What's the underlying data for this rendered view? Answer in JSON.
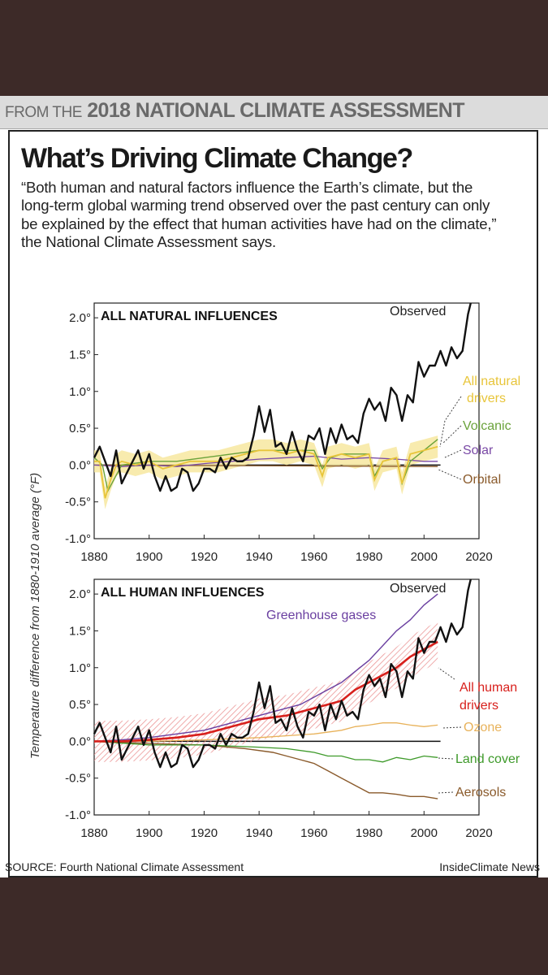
{
  "header": {
    "prefix": "FROM THE",
    "title": "2018 NATIONAL CLIMATE ASSESSMENT"
  },
  "title": "What’s Driving Climate Change?",
  "quote": "“Both human and natural factors influence the Earth’s climate, but the long-term global warming trend observed over the past century can only be explained by the effect that human activities have had on the climate,” the National Climate Assessment says.",
  "footer": {
    "source": "SOURCE: Fourth National Climate Assessment",
    "credit": "InsideClimate News"
  },
  "colors": {
    "observed": "#111111",
    "all_natural": "#e8c53a",
    "all_natural_band": "#f7e7a0",
    "volcanic": "#6aa23a",
    "solar": "#7a4aa6",
    "orbital": "#8a5a2b",
    "greenhouse": "#6a3fa0",
    "all_human": "#d8201c",
    "all_human_band": "#f2a3a3",
    "ozone": "#e8b25a",
    "land_cover": "#3e9a2a",
    "aerosols": "#8a5a2b"
  },
  "chart_data": [
    {
      "type": "line",
      "title": "ALL NATURAL INFLUENCES",
      "xlabel": "",
      "ylabel": "Temperature difference from 1880-1910 average (°F)",
      "xlim": [
        1880,
        2020
      ],
      "ylim": [
        -1.0,
        2.2
      ],
      "x_ticks": [
        "1880",
        "1900",
        "1920",
        "1940",
        "1960",
        "1980",
        "2000",
        "2020"
      ],
      "y_ticks": [
        "2.0°",
        "1.5°",
        "1.0°",
        "0.5°",
        "0.0°",
        "-0.5°",
        "-1.0°"
      ],
      "series": [
        {
          "name": "Observed",
          "color_key": "observed",
          "x": [
            1880,
            1882,
            1884,
            1886,
            1888,
            1890,
            1892,
            1894,
            1896,
            1898,
            1900,
            1902,
            1904,
            1906,
            1908,
            1910,
            1912,
            1914,
            1916,
            1918,
            1920,
            1922,
            1924,
            1926,
            1928,
            1930,
            1932,
            1934,
            1936,
            1938,
            1940,
            1942,
            1944,
            1946,
            1948,
            1950,
            1952,
            1954,
            1956,
            1958,
            1960,
            1962,
            1964,
            1966,
            1968,
            1970,
            1972,
            1974,
            1976,
            1978,
            1980,
            1982,
            1984,
            1986,
            1988,
            1990,
            1992,
            1994,
            1996,
            1998,
            2000,
            2002,
            2004,
            2006,
            2008,
            2010,
            2012,
            2014,
            2016,
            2017
          ],
          "y": [
            0.1,
            0.25,
            0.05,
            -0.15,
            0.2,
            -0.25,
            -0.1,
            0.05,
            0.2,
            -0.05,
            0.15,
            -0.15,
            -0.35,
            -0.15,
            -0.35,
            -0.3,
            -0.05,
            -0.1,
            -0.35,
            -0.25,
            -0.05,
            -0.05,
            -0.1,
            0.1,
            -0.05,
            0.1,
            0.05,
            0.05,
            0.1,
            0.4,
            0.8,
            0.45,
            0.75,
            0.25,
            0.3,
            0.15,
            0.45,
            0.2,
            0.05,
            0.4,
            0.35,
            0.5,
            0.15,
            0.5,
            0.3,
            0.55,
            0.35,
            0.4,
            0.3,
            0.7,
            0.9,
            0.75,
            0.85,
            0.6,
            1.05,
            0.95,
            0.6,
            0.95,
            0.85,
            1.4,
            1.2,
            1.35,
            1.35,
            1.55,
            1.35,
            1.6,
            1.45,
            1.55,
            2.05,
            2.2
          ]
        },
        {
          "name": "All natural drivers",
          "color_key": "all_natural",
          "x": [
            1880,
            1882,
            1884,
            1886,
            1888,
            1890,
            1895,
            1900,
            1905,
            1910,
            1915,
            1920,
            1925,
            1930,
            1935,
            1940,
            1945,
            1950,
            1955,
            1960,
            1963,
            1965,
            1970,
            1975,
            1980,
            1982,
            1985,
            1990,
            1992,
            1995,
            2000,
            2005
          ],
          "y": [
            0.05,
            0.05,
            -0.45,
            -0.2,
            0.0,
            0.05,
            0.0,
            0.05,
            -0.05,
            0.0,
            0.05,
            0.05,
            0.05,
            0.1,
            0.15,
            0.2,
            0.2,
            0.15,
            0.2,
            0.15,
            -0.15,
            0.1,
            0.15,
            0.1,
            0.15,
            -0.2,
            0.05,
            0.1,
            -0.25,
            0.15,
            0.2,
            0.25
          ]
        },
        {
          "name": "Volcanic",
          "color_key": "volcanic",
          "x": [
            1880,
            1883,
            1885,
            1890,
            1900,
            1910,
            1920,
            1930,
            1940,
            1950,
            1960,
            1963,
            1966,
            1970,
            1980,
            1982,
            1985,
            1990,
            1992,
            1995,
            2000,
            2005
          ],
          "y": [
            0.1,
            0.0,
            -0.35,
            0.0,
            0.05,
            0.05,
            0.1,
            0.15,
            0.2,
            0.2,
            0.2,
            -0.05,
            0.1,
            0.15,
            0.15,
            -0.15,
            0.05,
            0.1,
            -0.25,
            0.05,
            0.2,
            0.35
          ]
        },
        {
          "name": "Solar",
          "color_key": "solar",
          "x": [
            1880,
            1890,
            1900,
            1910,
            1920,
            1930,
            1940,
            1950,
            1960,
            1970,
            1980,
            1990,
            2000,
            2005
          ],
          "y": [
            0.0,
            -0.02,
            0.0,
            -0.02,
            0.02,
            0.05,
            0.08,
            0.1,
            0.12,
            0.08,
            0.1,
            0.08,
            0.05,
            0.05
          ]
        },
        {
          "name": "Orbital",
          "color_key": "orbital",
          "x": [
            1880,
            2005
          ],
          "y": [
            0.0,
            -0.02
          ]
        }
      ],
      "annotations": [
        "Observed",
        "All natural drivers",
        "Volcanic",
        "Solar",
        "Orbital"
      ]
    },
    {
      "type": "line",
      "title": "ALL HUMAN INFLUENCES",
      "xlabel": "",
      "ylabel": "Temperature difference from 1880-1910 average (°F)",
      "xlim": [
        1880,
        2020
      ],
      "ylim": [
        -1.0,
        2.2
      ],
      "x_ticks": [
        "1880",
        "1900",
        "1920",
        "1940",
        "1960",
        "1980",
        "2000",
        "2020"
      ],
      "y_ticks": [
        "2.0°",
        "1.5°",
        "1.0°",
        "0.5°",
        "0.0°",
        "-0.5°",
        "-1.0°"
      ],
      "series": [
        {
          "name": "Observed",
          "color_key": "observed",
          "x": [
            1880,
            1882,
            1884,
            1886,
            1888,
            1890,
            1892,
            1894,
            1896,
            1898,
            1900,
            1902,
            1904,
            1906,
            1908,
            1910,
            1912,
            1914,
            1916,
            1918,
            1920,
            1922,
            1924,
            1926,
            1928,
            1930,
            1932,
            1934,
            1936,
            1938,
            1940,
            1942,
            1944,
            1946,
            1948,
            1950,
            1952,
            1954,
            1956,
            1958,
            1960,
            1962,
            1964,
            1966,
            1968,
            1970,
            1972,
            1974,
            1976,
            1978,
            1980,
            1982,
            1984,
            1986,
            1988,
            1990,
            1992,
            1994,
            1996,
            1998,
            2000,
            2002,
            2004,
            2006,
            2008,
            2010,
            2012,
            2014,
            2016,
            2017
          ],
          "y": [
            0.1,
            0.25,
            0.05,
            -0.15,
            0.2,
            -0.25,
            -0.1,
            0.05,
            0.2,
            -0.05,
            0.15,
            -0.15,
            -0.35,
            -0.15,
            -0.35,
            -0.3,
            -0.05,
            -0.1,
            -0.35,
            -0.25,
            -0.05,
            -0.05,
            -0.1,
            0.1,
            -0.05,
            0.1,
            0.05,
            0.05,
            0.1,
            0.4,
            0.8,
            0.45,
            0.75,
            0.25,
            0.3,
            0.15,
            0.45,
            0.2,
            0.05,
            0.4,
            0.35,
            0.5,
            0.15,
            0.5,
            0.3,
            0.55,
            0.35,
            0.4,
            0.3,
            0.7,
            0.9,
            0.75,
            0.85,
            0.6,
            1.05,
            0.95,
            0.6,
            0.95,
            0.85,
            1.4,
            1.2,
            1.35,
            1.35,
            1.55,
            1.35,
            1.6,
            1.45,
            1.55,
            2.05,
            2.2
          ]
        },
        {
          "name": "Greenhouse gases",
          "color_key": "greenhouse",
          "x": [
            1880,
            1890,
            1900,
            1910,
            1920,
            1930,
            1940,
            1950,
            1955,
            1960,
            1965,
            1970,
            1975,
            1980,
            1985,
            1990,
            1995,
            2000,
            2005
          ],
          "y": [
            0.0,
            0.02,
            0.05,
            0.1,
            0.15,
            0.25,
            0.35,
            0.45,
            0.5,
            0.6,
            0.7,
            0.8,
            0.95,
            1.1,
            1.3,
            1.5,
            1.65,
            1.85,
            2.0
          ]
        },
        {
          "name": "All human drivers",
          "color_key": "all_human",
          "x": [
            1880,
            1890,
            1900,
            1910,
            1920,
            1930,
            1940,
            1950,
            1960,
            1965,
            1970,
            1975,
            1980,
            1985,
            1990,
            1995,
            2000,
            2005
          ],
          "y": [
            0.0,
            0.0,
            0.02,
            0.05,
            0.1,
            0.2,
            0.3,
            0.35,
            0.45,
            0.5,
            0.55,
            0.7,
            0.8,
            0.9,
            1.0,
            1.15,
            1.25,
            1.35
          ]
        },
        {
          "name": "Ozone",
          "color_key": "ozone",
          "x": [
            1880,
            1900,
            1920,
            1940,
            1960,
            1970,
            1975,
            1980,
            1985,
            1990,
            1995,
            2000,
            2005
          ],
          "y": [
            0.0,
            0.0,
            0.02,
            0.05,
            0.1,
            0.15,
            0.2,
            0.22,
            0.25,
            0.25,
            0.22,
            0.2,
            0.22
          ]
        },
        {
          "name": "Land cover",
          "color_key": "land_cover",
          "x": [
            1880,
            1900,
            1920,
            1940,
            1950,
            1960,
            1965,
            1970,
            1975,
            1980,
            1985,
            1990,
            1995,
            2000,
            2005
          ],
          "y": [
            0.0,
            -0.05,
            -0.05,
            -0.08,
            -0.1,
            -0.15,
            -0.2,
            -0.2,
            -0.25,
            -0.25,
            -0.28,
            -0.22,
            -0.25,
            -0.2,
            -0.22
          ]
        },
        {
          "name": "Aerosols",
          "color_key": "aerosols",
          "x": [
            1880,
            1900,
            1920,
            1935,
            1945,
            1950,
            1955,
            1960,
            1965,
            1970,
            1975,
            1980,
            1985,
            1990,
            1995,
            2000,
            2005
          ],
          "y": [
            0.0,
            -0.03,
            -0.05,
            -0.1,
            -0.15,
            -0.2,
            -0.25,
            -0.3,
            -0.4,
            -0.5,
            -0.6,
            -0.7,
            -0.7,
            -0.72,
            -0.75,
            -0.75,
            -0.78
          ]
        }
      ],
      "annotations": [
        "Observed",
        "Greenhouse gases",
        "All human drivers",
        "Ozone",
        "Land cover",
        "Aerosols"
      ]
    }
  ],
  "labels": {
    "observed": "Observed",
    "all_natural_l1": "All natural",
    "all_natural_l2": "drivers",
    "volcanic": "Volcanic",
    "solar": "Solar",
    "orbital": "Orbital",
    "greenhouse": "Greenhouse gases",
    "all_human_l1": "All human",
    "all_human_l2": "drivers",
    "ozone": "Ozone",
    "land_cover": "Land cover",
    "aerosols": "Aerosols"
  }
}
